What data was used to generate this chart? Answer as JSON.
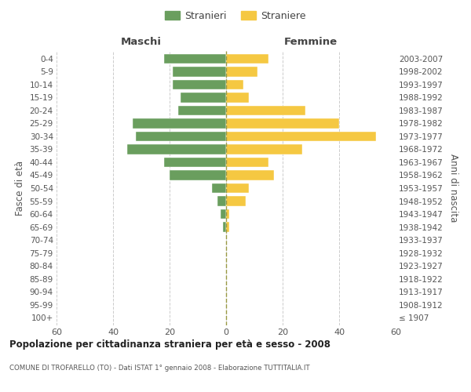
{
  "age_groups": [
    "100+",
    "95-99",
    "90-94",
    "85-89",
    "80-84",
    "75-79",
    "70-74",
    "65-69",
    "60-64",
    "55-59",
    "50-54",
    "45-49",
    "40-44",
    "35-39",
    "30-34",
    "25-29",
    "20-24",
    "15-19",
    "10-14",
    "5-9",
    "0-4"
  ],
  "birth_years": [
    "≤ 1907",
    "1908-1912",
    "1913-1917",
    "1918-1922",
    "1923-1927",
    "1928-1932",
    "1933-1937",
    "1938-1942",
    "1943-1947",
    "1948-1952",
    "1953-1957",
    "1958-1962",
    "1963-1967",
    "1968-1972",
    "1973-1977",
    "1978-1982",
    "1983-1987",
    "1988-1992",
    "1993-1997",
    "1998-2002",
    "2003-2007"
  ],
  "maschi": [
    0,
    0,
    0,
    0,
    0,
    0,
    0,
    1,
    2,
    3,
    5,
    20,
    22,
    35,
    32,
    33,
    17,
    16,
    19,
    19,
    22
  ],
  "femmine": [
    0,
    0,
    0,
    0,
    0,
    0,
    0,
    1,
    1,
    7,
    8,
    17,
    15,
    27,
    53,
    40,
    28,
    8,
    6,
    11,
    15
  ],
  "maschi_color": "#6a9e5e",
  "femmine_color": "#f5c842",
  "bar_height": 0.75,
  "xlim": 60,
  "title": "Popolazione per cittadinanza straniera per età e sesso - 2008",
  "subtitle": "COMUNE DI TROFARELLO (TO) - Dati ISTAT 1° gennaio 2008 - Elaborazione TUTTITALIA.IT",
  "ylabel_left": "Fasce di età",
  "ylabel_right": "Anni di nascita",
  "xlabel_left": "Maschi",
  "xlabel_top_right": "Femmine",
  "legend_maschi": "Stranieri",
  "legend_femmine": "Straniere",
  "background_color": "#ffffff",
  "grid_color": "#cccccc"
}
